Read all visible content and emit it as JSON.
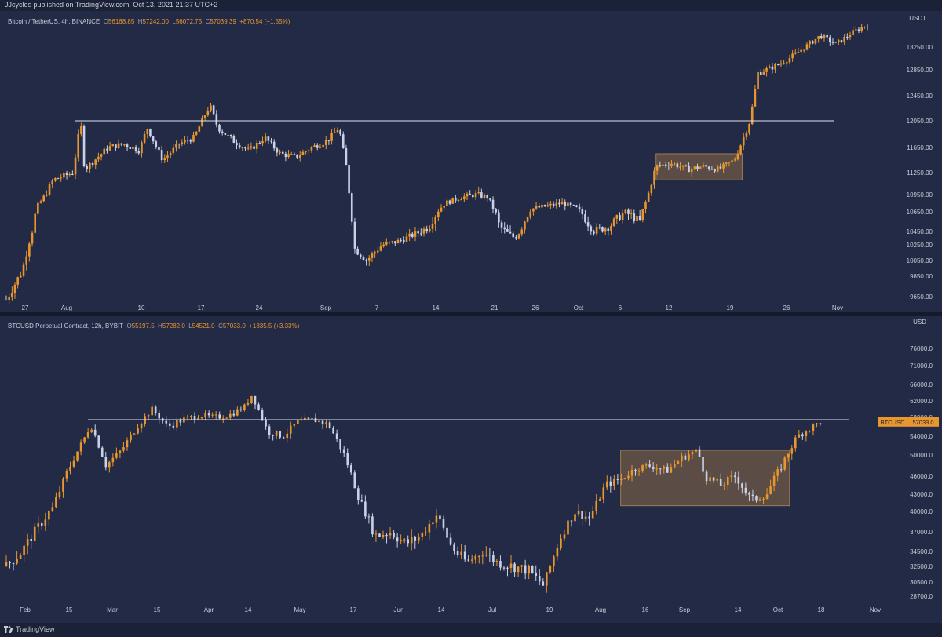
{
  "header": {
    "publish_text": "JJcycles published on TradingView.com, Oct 13, 2021 21:37 UTC+2"
  },
  "footer": {
    "brand": "TradingView"
  },
  "colors": {
    "background": "#222a45",
    "up": "#e8962e",
    "down": "#c9d1e6",
    "box": "#8a6a45",
    "line": "#e0e4ee"
  },
  "panels": [
    {
      "symbol": "Bitcoin / TetherUS, 4h, BINANCE",
      "ohlc": {
        "o": "56168.85",
        "h": "57242.00",
        "l": "56072.75",
        "c": "57039.39",
        "chg": "+870.54 (+1.55%)"
      },
      "currency_label": "USDT"
    },
    {
      "symbol": "BTCUSD Perpetual Contract, 12h, BYBIT",
      "ohlc": {
        "o": "55197.5",
        "h": "57282.0",
        "l": "54521.0",
        "c": "57033.0",
        "chg": "+1835.5 (+3.33%)"
      },
      "currency_label": "USD",
      "price_tag": "BTCUSD",
      "price_value": "57033.0"
    }
  ],
  "chart_data": [
    {
      "type": "candlestick",
      "title": "Bitcoin / TetherUS, 4h, BINANCE",
      "y_ticks": [
        "9650.00",
        "9850.00",
        "10050.00",
        "10250.00",
        "10450.00",
        "10650.00",
        "10950.00",
        "11250.00",
        "11650.00",
        "12050.00",
        "12450.00",
        "12850.00",
        "13250.00"
      ],
      "x_ticks": [
        "27",
        "Aug",
        "10",
        "17",
        "24",
        "Sep",
        "7",
        "14",
        "21",
        "26",
        "Oct",
        "6",
        "12",
        "19",
        "26",
        "Nov"
      ],
      "series_path": [
        [
          0,
          9620
        ],
        [
          0.02,
          9900
        ],
        [
          0.04,
          10750
        ],
        [
          0.06,
          11150
        ],
        [
          0.085,
          11250
        ],
        [
          0.095,
          12050
        ],
        [
          0.1,
          11300
        ],
        [
          0.13,
          11650
        ],
        [
          0.15,
          11700
        ],
        [
          0.17,
          11600
        ],
        [
          0.18,
          11950
        ],
        [
          0.2,
          11450
        ],
        [
          0.22,
          11700
        ],
        [
          0.24,
          11800
        ],
        [
          0.26,
          12300
        ],
        [
          0.27,
          11950
        ],
        [
          0.29,
          11750
        ],
        [
          0.31,
          11600
        ],
        [
          0.33,
          11800
        ],
        [
          0.35,
          11550
        ],
        [
          0.37,
          11500
        ],
        [
          0.39,
          11650
        ],
        [
          0.41,
          11750
        ],
        [
          0.425,
          11950
        ],
        [
          0.435,
          11300
        ],
        [
          0.445,
          10200
        ],
        [
          0.46,
          10050
        ],
        [
          0.48,
          10250
        ],
        [
          0.5,
          10300
        ],
        [
          0.52,
          10400
        ],
        [
          0.54,
          10500
        ],
        [
          0.56,
          10800
        ],
        [
          0.58,
          10900
        ],
        [
          0.6,
          10950
        ],
        [
          0.615,
          10900
        ],
        [
          0.63,
          10500
        ],
        [
          0.65,
          10350
        ],
        [
          0.67,
          10700
        ],
        [
          0.69,
          10750
        ],
        [
          0.71,
          10800
        ],
        [
          0.73,
          10700
        ],
        [
          0.75,
          10450
        ],
        [
          0.77,
          10500
        ],
        [
          0.79,
          10650
        ],
        [
          0.81,
          10550
        ],
        [
          0.83,
          11350
        ],
        [
          0.85,
          11400
        ],
        [
          0.87,
          11300
        ],
        [
          0.89,
          11350
        ],
        [
          0.91,
          11300
        ],
        [
          0.93,
          11450
        ],
        [
          0.95,
          12050
        ],
        [
          0.96,
          12800
        ],
        [
          0.98,
          12900
        ],
        [
          1.0,
          13050
        ],
        [
          1.02,
          13250
        ],
        [
          1.04,
          13450
        ],
        [
          1.06,
          13300
        ],
        [
          1.08,
          13500
        ],
        [
          1.1,
          13650
        ]
      ],
      "horizontal_lines": [
        12050
      ],
      "box": {
        "x_start": 0.83,
        "x_end": 0.94,
        "y_low": 11150,
        "y_high": 11550
      }
    },
    {
      "type": "candlestick",
      "title": "BTCUSD Perpetual Contract, 12h, BYBIT",
      "y_ticks": [
        "28700.0",
        "30500.0",
        "32500.0",
        "34500.0",
        "37000.0",
        "40000.0",
        "43000.0",
        "46000.0",
        "50000.0",
        "54000.0",
        "58000.0",
        "62000.0",
        "66000.0",
        "71000.0",
        "76000.0"
      ],
      "x_ticks": [
        "Feb",
        "15",
        "Mar",
        "15",
        "Apr",
        "14",
        "May",
        "17",
        "Jun",
        "14",
        "Jul",
        "19",
        "Aug",
        "16",
        "Sep",
        "14",
        "Oct",
        "18",
        "Nov"
      ],
      "series_path": [
        [
          0,
          32500
        ],
        [
          0.02,
          34500
        ],
        [
          0.04,
          37500
        ],
        [
          0.06,
          40500
        ],
        [
          0.08,
          47000
        ],
        [
          0.1,
          53000
        ],
        [
          0.11,
          56500
        ],
        [
          0.13,
          48000
        ],
        [
          0.15,
          51000
        ],
        [
          0.17,
          56000
        ],
        [
          0.19,
          60000
        ],
        [
          0.21,
          56000
        ],
        [
          0.23,
          57500
        ],
        [
          0.25,
          58500
        ],
        [
          0.27,
          58000
        ],
        [
          0.29,
          58500
        ],
        [
          0.31,
          60500
        ],
        [
          0.32,
          63500
        ],
        [
          0.34,
          55000
        ],
        [
          0.36,
          54000
        ],
        [
          0.38,
          57000
        ],
        [
          0.4,
          57500
        ],
        [
          0.42,
          56500
        ],
        [
          0.44,
          50000
        ],
        [
          0.46,
          42000
        ],
        [
          0.48,
          36500
        ],
        [
          0.5,
          37000
        ],
        [
          0.52,
          35500
        ],
        [
          0.54,
          36500
        ],
        [
          0.56,
          39500
        ],
        [
          0.58,
          35000
        ],
        [
          0.6,
          33000
        ],
        [
          0.62,
          34500
        ],
        [
          0.64,
          33000
        ],
        [
          0.66,
          32500
        ],
        [
          0.68,
          32000
        ],
        [
          0.7,
          30000
        ],
        [
          0.72,
          36000
        ],
        [
          0.74,
          40000
        ],
        [
          0.76,
          39000
        ],
        [
          0.78,
          44500
        ],
        [
          0.8,
          45500
        ],
        [
          0.82,
          47500
        ],
        [
          0.84,
          48000
        ],
        [
          0.86,
          47000
        ],
        [
          0.88,
          49500
        ],
        [
          0.9,
          51000
        ],
        [
          0.91,
          46000
        ],
        [
          0.93,
          44500
        ],
        [
          0.95,
          46000
        ],
        [
          0.97,
          42000
        ],
        [
          0.99,
          43000
        ],
        [
          1.01,
          48000
        ],
        [
          1.03,
          54000
        ],
        [
          1.05,
          56000
        ],
        [
          1.06,
          57000
        ]
      ],
      "horizontal_lines": [
        57500
      ],
      "box": {
        "x_start": 0.8,
        "x_end": 1.02,
        "y_low": 41000,
        "y_high": 51000
      },
      "last_price": 57033.0
    }
  ]
}
